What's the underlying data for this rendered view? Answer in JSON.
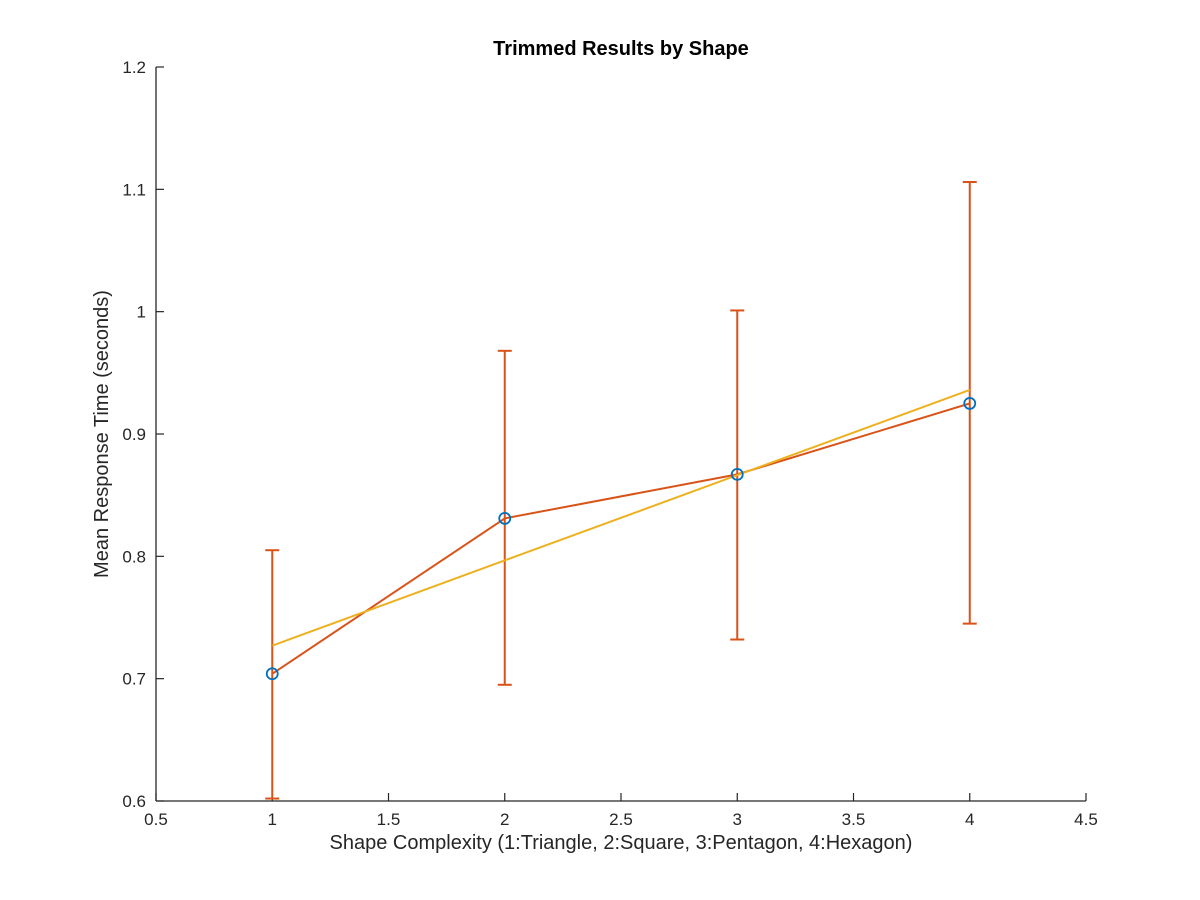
{
  "chart_data": {
    "type": "line",
    "title": "Trimmed Results by Shape",
    "xlabel": "Shape Complexity (1:Triangle, 2:Square, 3:Pentagon, 4:Hexagon)",
    "ylabel": "Mean Response Time (seconds)",
    "xlim": [
      0.5,
      4.5
    ],
    "ylim": [
      0.6,
      1.2
    ],
    "xticks": [
      "0.5",
      "1",
      "1.5",
      "2",
      "2.5",
      "3",
      "3.5",
      "4",
      "4.5"
    ],
    "yticks": [
      "0.6",
      "0.7",
      "0.8",
      "0.9",
      "1",
      "1.1",
      "1.2"
    ],
    "grid": false,
    "series": [
      {
        "kind": "errorbar",
        "x": [
          1,
          2,
          3,
          4
        ],
        "y": [
          0.704,
          0.831,
          0.867,
          0.925
        ],
        "lower": [
          0.602,
          0.695,
          0.732,
          0.745
        ],
        "upper": [
          0.805,
          0.968,
          1.001,
          1.106
        ],
        "color": "#D95319"
      },
      {
        "kind": "markers",
        "marker": "circle",
        "x": [
          1,
          2,
          3,
          4
        ],
        "y": [
          0.704,
          0.831,
          0.867,
          0.925
        ],
        "color": "#0072BD"
      },
      {
        "kind": "fit-line",
        "x": [
          1,
          4
        ],
        "y": [
          0.727,
          0.936
        ],
        "color": "#EDB120"
      }
    ]
  }
}
